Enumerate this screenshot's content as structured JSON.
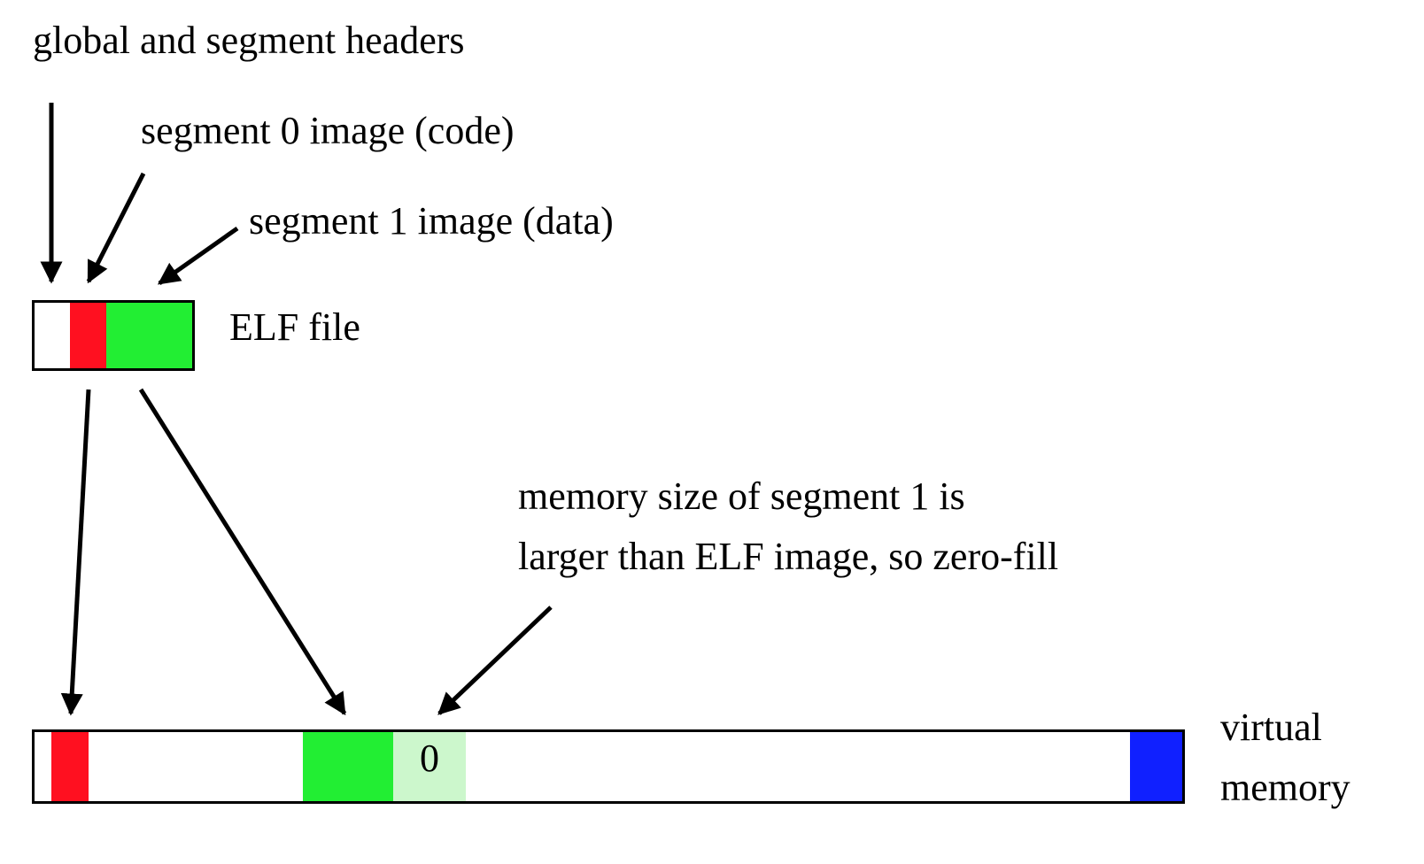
{
  "labels": {
    "headers": "global and segment headers",
    "segment0": "segment 0 image (code)",
    "segment1": "segment 1 image (data)",
    "elf_file": "ELF file",
    "memory_note_line1": "memory size of segment 1 is",
    "memory_note_line2": "larger than ELF image, so zero-fill",
    "virtual_line1": "virtual",
    "virtual_line2": "memory",
    "zero_fill": "0"
  },
  "colors": {
    "code_segment": "#ff1020",
    "data_segment": "#22ee33",
    "zero_fill": "#ccf7cc",
    "stack_region": "#1020ff",
    "outline": "#000000",
    "background": "#ffffff"
  }
}
